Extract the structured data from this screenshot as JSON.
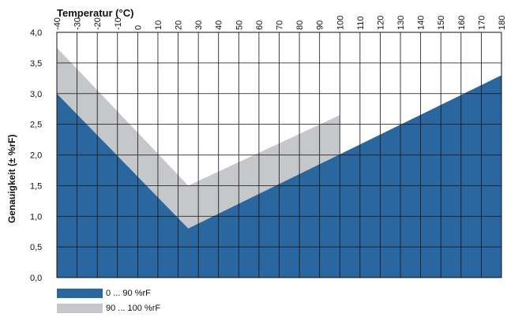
{
  "chart_data": {
    "type": "area",
    "title": "",
    "xlabel": "Temperatur (°C)",
    "ylabel": "Genauigkeit (± %rF)",
    "x_axis_position": "top",
    "xlim": [
      -40,
      180
    ],
    "ylim": [
      0,
      4
    ],
    "x_ticks": [
      -40,
      -30,
      -20,
      -10,
      0,
      10,
      20,
      30,
      40,
      50,
      60,
      70,
      80,
      90,
      100,
      110,
      120,
      130,
      140,
      150,
      160,
      170,
      180
    ],
    "x_tick_labels": [
      "-40",
      "-30",
      "-20",
      "-10",
      "0",
      "10",
      "20",
      "30",
      "40",
      "50",
      "60",
      "70",
      "80",
      "90",
      "100",
      "110",
      "120",
      "130",
      "140",
      "150",
      "160",
      "170",
      "180"
    ],
    "y_ticks": [
      0,
      0.5,
      1,
      1.5,
      2,
      2.5,
      3,
      3.5,
      4
    ],
    "y_tick_labels": [
      "0,0",
      "0,5",
      "1,0",
      "1,5",
      "2,0",
      "2,5",
      "3,0",
      "3,5",
      "4,0"
    ],
    "grid": true,
    "legend_position": "bottom-left",
    "series": [
      {
        "name": "90 ... 100 %rF",
        "color": "#c5c7cb",
        "x": [
          -40,
          25,
          100,
          100
        ],
        "y": [
          3.75,
          1.5,
          2.65,
          0
        ]
      },
      {
        "name": "0 ... 90 %rF",
        "color": "#2b679f",
        "x": [
          -40,
          25,
          180
        ],
        "y": [
          3.0,
          0.8,
          3.3
        ]
      }
    ]
  }
}
